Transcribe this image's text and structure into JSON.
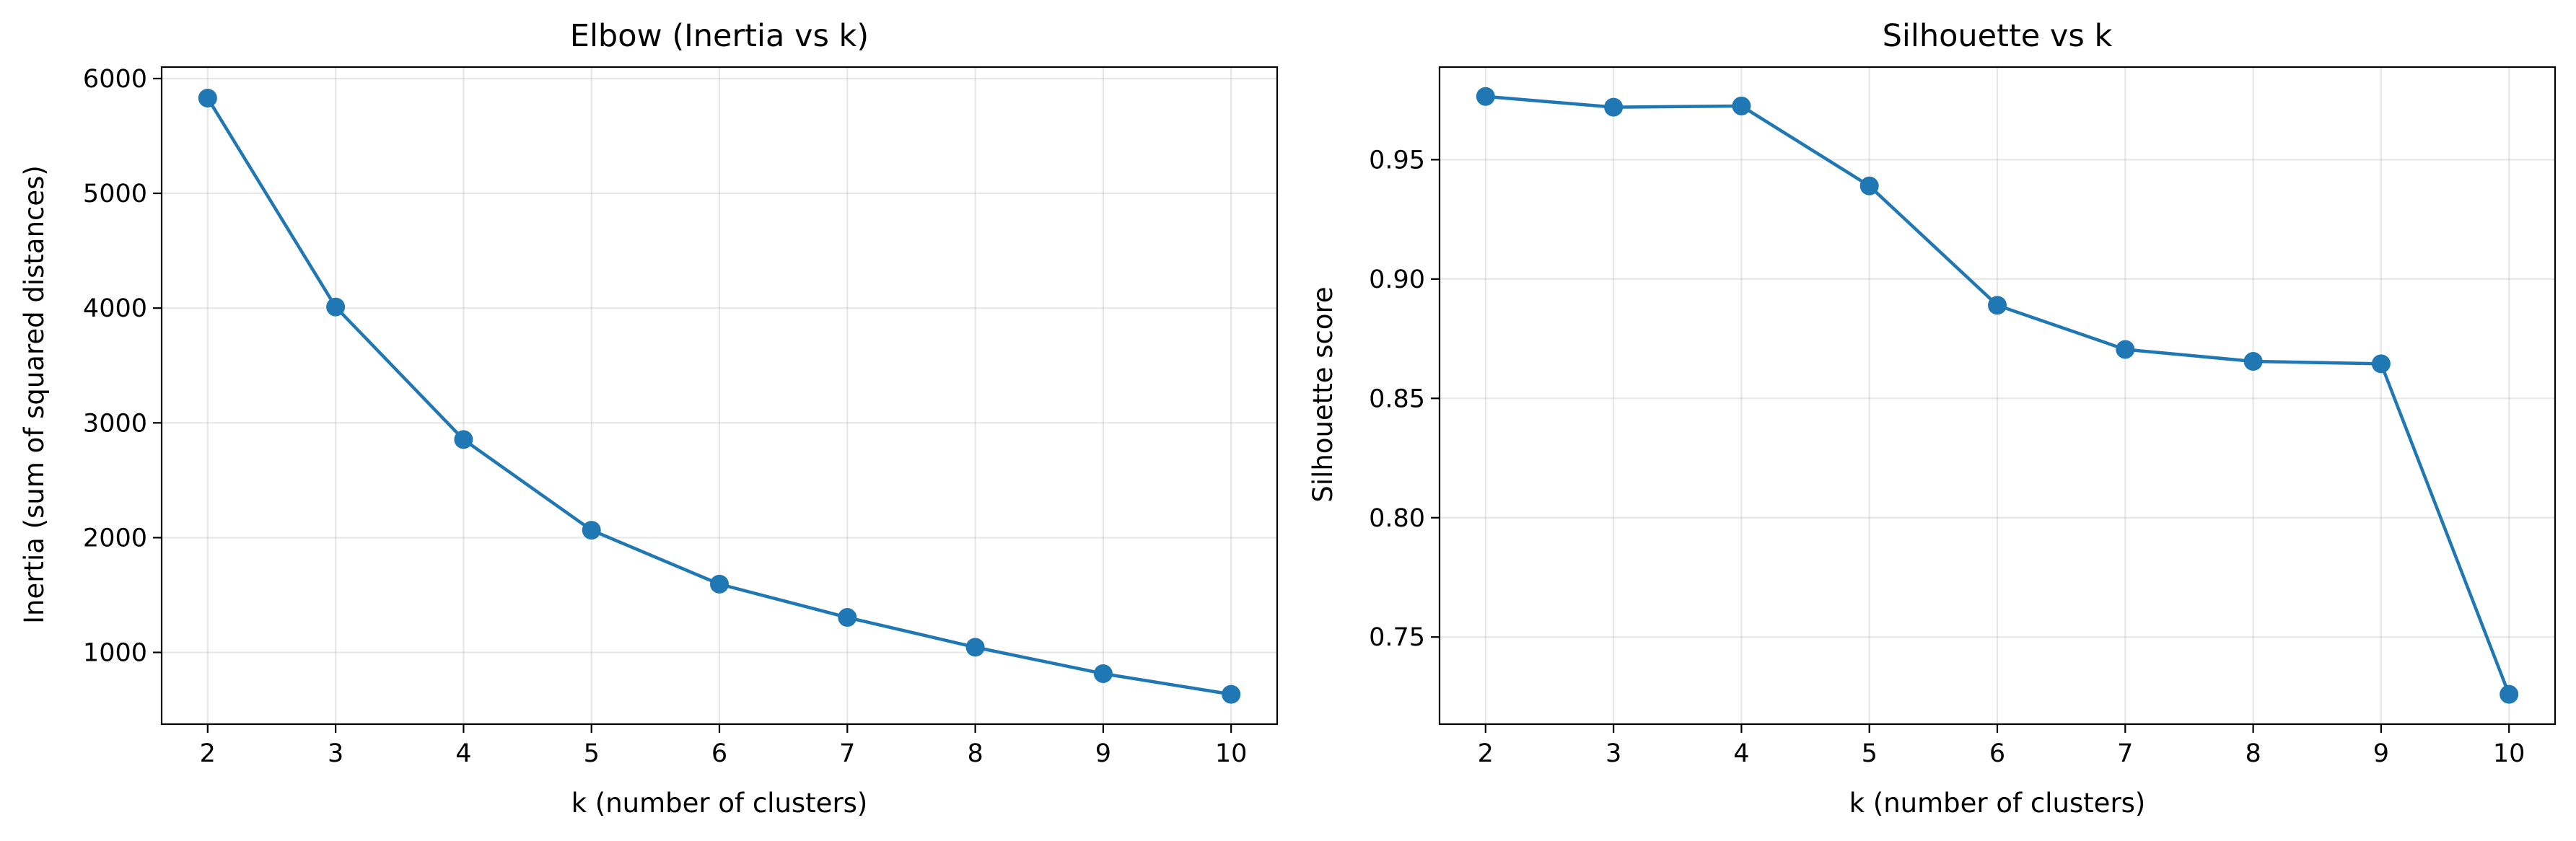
{
  "colors": {
    "series": "#1f77b4",
    "grid": "#b0b0b0",
    "axes": "#000000"
  },
  "chart_data": [
    {
      "type": "line",
      "title": "Elbow (Inertia vs k)",
      "xlabel": "k (number of clusters)",
      "ylabel": "Inertia (sum of squared distances)",
      "x": [
        2,
        3,
        4,
        5,
        6,
        7,
        8,
        9,
        10
      ],
      "series": [
        {
          "values": [
            5830,
            4010,
            2855,
            2065,
            1595,
            1305,
            1045,
            815,
            635
          ]
        }
      ],
      "xlim": [
        1.64,
        10.36
      ],
      "ylim": [
        375,
        6100
      ],
      "xticks": [
        2,
        3,
        4,
        5,
        6,
        7,
        8,
        9,
        10
      ],
      "yticks": [
        1000,
        2000,
        3000,
        4000,
        5000,
        6000
      ],
      "xtick_labels": [
        "2",
        "3",
        "4",
        "5",
        "6",
        "7",
        "8",
        "9",
        "10"
      ],
      "ytick_labels": [
        "1000",
        "2000",
        "3000",
        "4000",
        "5000",
        "6000"
      ],
      "grid": true,
      "marker": "circle"
    },
    {
      "type": "line",
      "title": "Silhouette vs k",
      "xlabel": "k (number of clusters)",
      "ylabel": "Silhouette score",
      "x": [
        2,
        3,
        4,
        5,
        6,
        7,
        8,
        9,
        10
      ],
      "series": [
        {
          "values": [
            0.9765,
            0.972,
            0.9725,
            0.939,
            0.889,
            0.8705,
            0.8655,
            0.8645,
            0.726
          ]
        }
      ],
      "xlim": [
        1.64,
        10.36
      ],
      "ylim": [
        0.7135,
        0.9888
      ],
      "xticks": [
        2,
        3,
        4,
        5,
        6,
        7,
        8,
        9,
        10
      ],
      "yticks": [
        0.75,
        0.8,
        0.85,
        0.9,
        0.95
      ],
      "xtick_labels": [
        "2",
        "3",
        "4",
        "5",
        "6",
        "7",
        "8",
        "9",
        "10"
      ],
      "ytick_labels": [
        "0.75",
        "0.80",
        "0.85",
        "0.90",
        "0.95"
      ],
      "grid": true,
      "marker": "circle"
    }
  ]
}
